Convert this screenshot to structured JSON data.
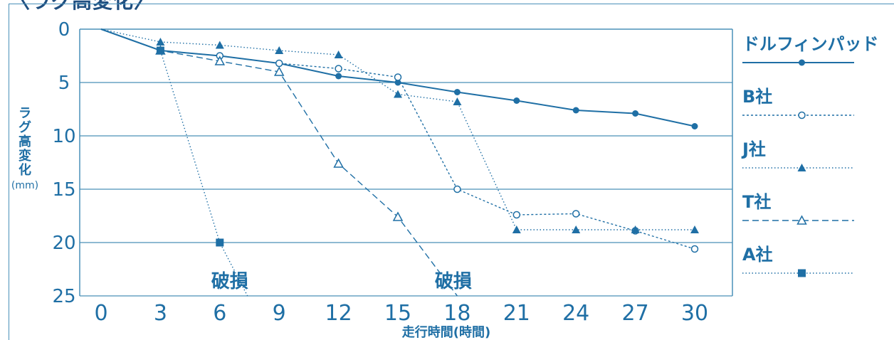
{
  "header": {
    "title": "〈ラグ高変化〉"
  },
  "chart_data": {
    "type": "line",
    "xlabel": "走行時間(時間)",
    "ylabel": "ラグ高変化",
    "ylabel_unit": "(mm)",
    "x_ticks": [
      0,
      3,
      6,
      9,
      12,
      15,
      18,
      21,
      24,
      27,
      30
    ],
    "y_ticks": [
      0,
      5,
      10,
      15,
      20,
      25
    ],
    "xlim": [
      0,
      30
    ],
    "ylim": [
      0,
      25
    ],
    "y_inverted": true,
    "grid": "horizontal",
    "legend_position": "right",
    "series": [
      {
        "name": "ドルフィンパッド",
        "color": "#1f6fa5",
        "marker": "filled-circle",
        "dash": "solid",
        "x": [
          0,
          3,
          6,
          9,
          12,
          15,
          18,
          21,
          24,
          27,
          30
        ],
        "y": [
          0,
          2.0,
          2.5,
          3.2,
          4.4,
          5.0,
          5.9,
          6.7,
          7.6,
          7.9,
          9.1
        ]
      },
      {
        "name": "B社",
        "color": "#1f6fa5",
        "marker": "open-circle",
        "dash": "dotted",
        "x": [
          0,
          3,
          6,
          9,
          12,
          15,
          18,
          21,
          24,
          27,
          30
        ],
        "y": [
          0,
          2.0,
          2.5,
          3.2,
          3.7,
          4.5,
          15.0,
          17.4,
          17.3,
          18.9,
          20.6
        ]
      },
      {
        "name": "J社",
        "color": "#1f6fa5",
        "marker": "filled-triangle",
        "dash": "fine-dotted",
        "x": [
          0,
          3,
          6,
          9,
          12,
          15,
          18,
          21,
          24,
          27,
          30
        ],
        "y": [
          0,
          1.2,
          1.5,
          2.0,
          2.4,
          6.1,
          6.8,
          18.8,
          18.8,
          18.8,
          18.8
        ]
      },
      {
        "name": "T社",
        "color": "#1f6fa5",
        "marker": "open-triangle",
        "dash": "dashed",
        "x": [
          0,
          3,
          6,
          9,
          12,
          15,
          18
        ],
        "y": [
          0,
          2.0,
          3.0,
          4.0,
          12.6,
          17.6,
          25
        ]
      },
      {
        "name": "A社",
        "color": "#1f6fa5",
        "marker": "filled-square",
        "dash": "fine-dotted",
        "x": [
          0,
          3,
          6,
          7.4
        ],
        "y": [
          0,
          2.0,
          20.0,
          25
        ]
      }
    ],
    "annotations": [
      {
        "text": "破損",
        "x": 6.5,
        "y": 23.8
      },
      {
        "text": "破損",
        "x": 17.8,
        "y": 23.8
      }
    ]
  }
}
